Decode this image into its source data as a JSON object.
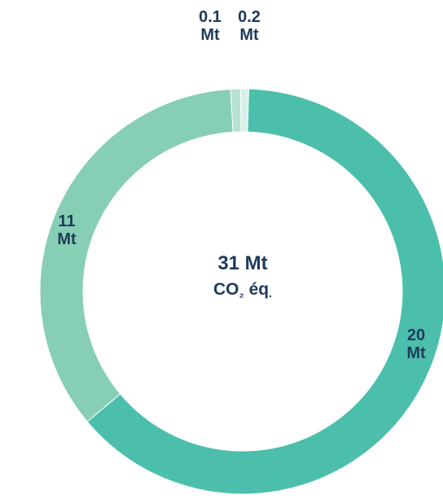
{
  "chart_data": {
    "type": "donut",
    "total": {
      "value_text": "31 Mt",
      "unit_prefix": "CO",
      "unit_subscript": "₂",
      "unit_suffix": " éq",
      "unit_dot": "."
    },
    "slices": [
      {
        "value": 20,
        "label_lines": [
          "20",
          "Mt"
        ],
        "color": "#4bbfac"
      },
      {
        "value": 11,
        "label_lines": [
          "11",
          "Mt"
        ],
        "color": "#87cfb4"
      },
      {
        "value": 0.1,
        "label_lines": [
          "0.1",
          "Mt"
        ],
        "color": "#b5e2d3"
      },
      {
        "value": 0.2,
        "label_lines": [
          "0.2",
          "Mt"
        ],
        "color": "#d8f0e7"
      }
    ],
    "label_color": "#1f3a5a"
  }
}
